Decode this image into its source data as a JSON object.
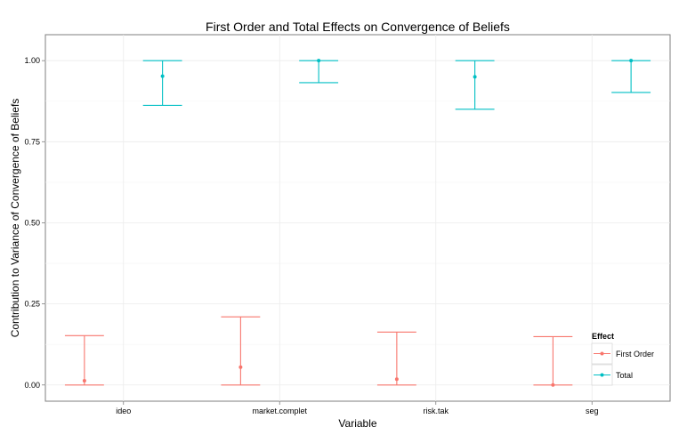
{
  "chart_data": {
    "type": "errorbar",
    "title": "First Order and Total Effects on Convergence of Beliefs",
    "xlabel": "Variable",
    "ylabel": "Contribution to Variance of Convergence of Beliefs",
    "categories": [
      "ideo",
      "market.complet",
      "risk.tak",
      "seg"
    ],
    "ylim": [
      -0.05,
      1.08
    ],
    "yticks": [
      0.0,
      0.25,
      0.5,
      0.75,
      1.0
    ],
    "ytick_labels": [
      "0.00",
      "0.25",
      "0.50",
      "0.75",
      "1.00"
    ],
    "grid": true,
    "legend": {
      "title": "Effect",
      "position": "right"
    },
    "series": [
      {
        "name": "First Order",
        "color": "#f8766d",
        "values": [
          0.013,
          0.055,
          0.018,
          0.0
        ],
        "lower": [
          0.0,
          0.0,
          0.0,
          0.0
        ],
        "upper": [
          0.152,
          0.21,
          0.163,
          0.149
        ]
      },
      {
        "name": "Total",
        "color": "#00bfc4",
        "values": [
          0.952,
          1.0,
          0.95,
          1.0
        ],
        "lower": [
          0.862,
          0.932,
          0.85,
          0.902
        ],
        "upper": [
          1.0,
          1.0,
          1.0,
          1.0
        ]
      }
    ]
  }
}
